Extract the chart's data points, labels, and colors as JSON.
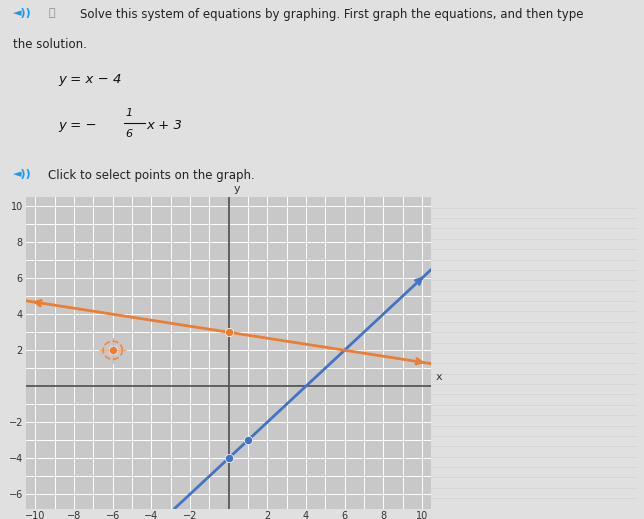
{
  "xlim": [
    -10.5,
    10.5
  ],
  "ylim": [
    -6.8,
    10.5
  ],
  "xticks": [
    -10,
    -8,
    -6,
    -4,
    -2,
    2,
    4,
    6,
    8,
    10
  ],
  "yticks": [
    -6,
    -4,
    -2,
    2,
    4,
    6,
    8,
    10
  ],
  "line1_color": "#4472C4",
  "line2_color": "#ED7D31",
  "line1_slope": 1,
  "line1_intercept": -4,
  "line2_slope": -0.16666666666666666,
  "line2_intercept": 3,
  "dot1_points": [
    [
      0,
      -4
    ],
    [
      1,
      -3
    ]
  ],
  "dot2_points": [
    [
      -6,
      2
    ],
    [
      0,
      3
    ]
  ],
  "bg_color": "#e0e0e0",
  "graph_bg": "#c8c8c8",
  "grid_color": "#b0b0b0",
  "white_grid": "#d9d9d9"
}
